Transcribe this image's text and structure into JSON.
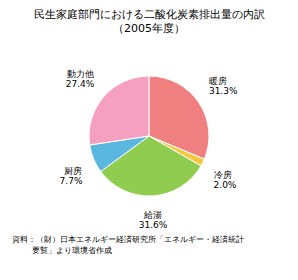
{
  "chart_data": {
    "type": "pie",
    "title": "民生家庭部門における二酸化炭素排出量の内訳\n（2005年度）",
    "categories": [
      "暖房",
      "冷房",
      "給湯",
      "厨房",
      "動力他"
    ],
    "values": [
      31.3,
      2.0,
      31.6,
      7.7,
      27.4
    ],
    "value_labels": [
      "31.3%",
      "2.0%",
      "31.6%",
      "7.7%",
      "27.4%"
    ],
    "colors": [
      "#f08080",
      "#f5c842",
      "#90cc50",
      "#5ab8e0",
      "#f5a0c0"
    ],
    "data_labels": true,
    "annotations": [
      "資料：（財）日本エネルギー経済研究所「エネルギー・経済統計\n        要覧」より環境省作成"
    ]
  }
}
